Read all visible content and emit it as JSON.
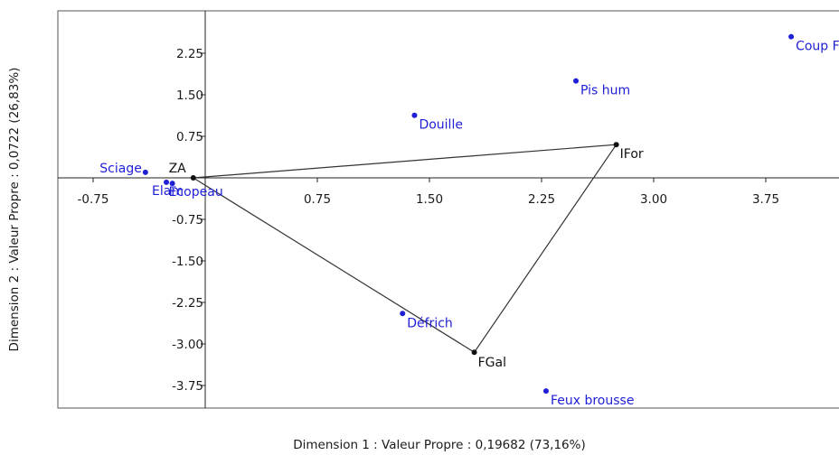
{
  "chart_data": {
    "type": "scatter",
    "xlabel": "Dimension 1 : Valeur Propre : 0,19682 (73,16%)",
    "ylabel": "Dimension 2 : Valeur Propre : 0,0722 (26,83%)",
    "xlim": [
      -1.0,
      4.3
    ],
    "ylim": [
      -4.2,
      3.0
    ],
    "x_ticks": [
      "-0.75",
      "0.75",
      "1.50",
      "2.25",
      "3.00",
      "3.75"
    ],
    "x_tick_values": [
      -0.75,
      0.75,
      1.5,
      2.25,
      3.0,
      3.75
    ],
    "y_ticks": [
      "2.25",
      "1.50",
      "0.75",
      "-0.75",
      "-1.50",
      "-2.25",
      "-3.00",
      "-3.75"
    ],
    "y_tick_values": [
      2.25,
      1.5,
      0.75,
      -0.75,
      -1.5,
      -2.25,
      -3.0,
      -3.75
    ],
    "colors": {
      "row_points": "#1f1fd6",
      "column_points": "#111111",
      "polygon": "#333333",
      "frame": "#555555"
    },
    "row_points": [
      {
        "label": "Coup F",
        "x": 3.92,
        "y": 2.55
      },
      {
        "label": "Pis hum",
        "x": 2.48,
        "y": 1.75
      },
      {
        "label": "Douille",
        "x": 1.4,
        "y": 1.13
      },
      {
        "label": "Sciage",
        "x": -0.4,
        "y": 0.1
      },
      {
        "label": "Elam",
        "x": -0.26,
        "y": -0.08
      },
      {
        "label": "Ecopeau",
        "x": -0.22,
        "y": -0.1
      },
      {
        "label": "Défrich",
        "x": 1.32,
        "y": -2.45
      },
      {
        "label": "Feux brousse",
        "x": 2.28,
        "y": -3.85
      }
    ],
    "column_points": [
      {
        "label": "ZA",
        "x": -0.08,
        "y": 0.0
      },
      {
        "label": "IFor",
        "x": 2.75,
        "y": 0.6
      },
      {
        "label": "FGal",
        "x": 1.8,
        "y": -3.15
      }
    ]
  }
}
